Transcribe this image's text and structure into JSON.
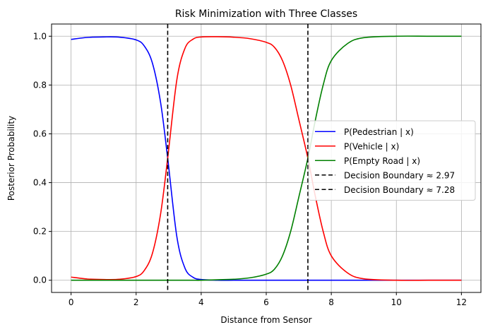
{
  "chart_data": {
    "type": "line",
    "title": "Risk Minimization with Three Classes",
    "xlabel": "Distance from Sensor",
    "ylabel": "Posterior Probability",
    "xlim": [
      -0.6,
      12.6
    ],
    "ylim": [
      -0.05,
      1.05
    ],
    "xticks": [
      0,
      2,
      4,
      6,
      8,
      10,
      12
    ],
    "yticks": [
      0.0,
      0.2,
      0.4,
      0.6,
      0.8,
      1.0
    ],
    "xtick_labels": [
      "0",
      "2",
      "4",
      "6",
      "8",
      "10",
      "12"
    ],
    "ytick_labels": [
      "0.0",
      "0.2",
      "0.4",
      "0.6",
      "0.8",
      "1.0"
    ],
    "grid": true,
    "legend_position": "center-right",
    "x": [
      0,
      0.5,
      1,
      1.5,
      2,
      2.25,
      2.5,
      2.75,
      2.97,
      3.25,
      3.5,
      3.75,
      4,
      4.5,
      5,
      5.5,
      6,
      6.25,
      6.5,
      6.75,
      7,
      7.28,
      7.5,
      7.75,
      8,
      8.5,
      9,
      10,
      11,
      12
    ],
    "series": [
      {
        "name": "P(Pedestrian | x)",
        "color": "#0000ff",
        "style": "solid",
        "values": [
          0.987,
          0.995,
          0.997,
          0.996,
          0.985,
          0.96,
          0.89,
          0.73,
          0.5,
          0.18,
          0.05,
          0.012,
          0.003,
          0.0,
          0.0,
          0.0,
          0.0,
          0.0,
          0.0,
          0.0,
          0.0,
          0.0,
          0.0,
          0.0,
          0.0,
          0.0,
          0.0,
          0.0,
          0.0,
          0.0
        ]
      },
      {
        "name": "P(Vehicle | x)",
        "color": "#ff0000",
        "style": "solid",
        "values": [
          0.013,
          0.005,
          0.003,
          0.004,
          0.015,
          0.04,
          0.11,
          0.27,
          0.5,
          0.82,
          0.95,
          0.988,
          0.997,
          0.998,
          0.996,
          0.99,
          0.975,
          0.955,
          0.9,
          0.8,
          0.66,
          0.5,
          0.35,
          0.2,
          0.1,
          0.03,
          0.006,
          0.0,
          0.0,
          0.0
        ]
      },
      {
        "name": "P(Empty Road | x)",
        "color": "#008000",
        "style": "solid",
        "values": [
          0.0,
          0.0,
          0.0,
          0.0,
          0.0,
          0.0,
          0.0,
          0.0,
          0.0,
          0.0,
          0.0,
          0.0,
          0.0,
          0.002,
          0.004,
          0.01,
          0.025,
          0.045,
          0.1,
          0.2,
          0.34,
          0.5,
          0.65,
          0.8,
          0.9,
          0.97,
          0.994,
          1.0,
          1.0,
          1.0
        ]
      }
    ],
    "vlines": [
      {
        "name": "Decision Boundary ≈ 2.97",
        "x": 2.97,
        "color": "#000000",
        "style": "dashed"
      },
      {
        "name": "Decision Boundary ≈ 7.28",
        "x": 7.28,
        "color": "#000000",
        "style": "dashed"
      }
    ]
  }
}
